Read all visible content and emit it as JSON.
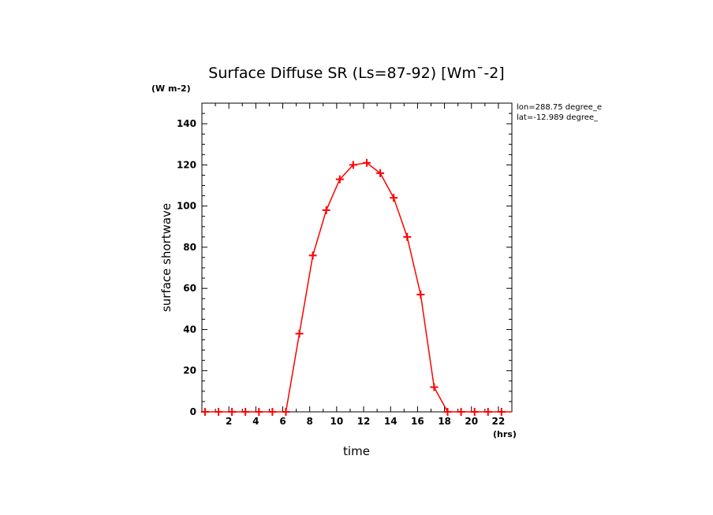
{
  "chart_data": {
    "type": "line",
    "title": "Surface Diffuse SR (Ls=87-92) [Wm¯-2]",
    "y_units": "(W m-2)",
    "x_units": "(hrs)",
    "xlabel": "time",
    "ylabel": "surface shortwave",
    "xlim": [
      0,
      23
    ],
    "ylim": [
      0,
      150
    ],
    "x_ticks": [
      2,
      4,
      6,
      8,
      10,
      12,
      14,
      16,
      18,
      20,
      22
    ],
    "y_ticks": [
      0,
      20,
      40,
      60,
      80,
      100,
      120,
      140
    ],
    "annotations": [
      "lon=288.75 degree_e",
      "lat=-12.989 degree_"
    ],
    "series": [
      {
        "name": "surface shortwave",
        "color": "#ff0000",
        "x": [
          0.23,
          1.23,
          2.23,
          3.23,
          4.23,
          5.23,
          6.23,
          7.23,
          8.23,
          9.23,
          10.23,
          11.23,
          12.23,
          13.23,
          14.23,
          15.23,
          16.23,
          17.23,
          18.23,
          19.23,
          20.23,
          21.23,
          22.23
        ],
        "y": [
          0,
          0,
          0,
          0,
          0,
          0,
          0,
          38,
          76,
          98,
          113,
          120,
          121,
          116,
          104,
          85,
          57,
          12,
          0,
          0,
          0,
          0,
          0
        ]
      }
    ]
  }
}
